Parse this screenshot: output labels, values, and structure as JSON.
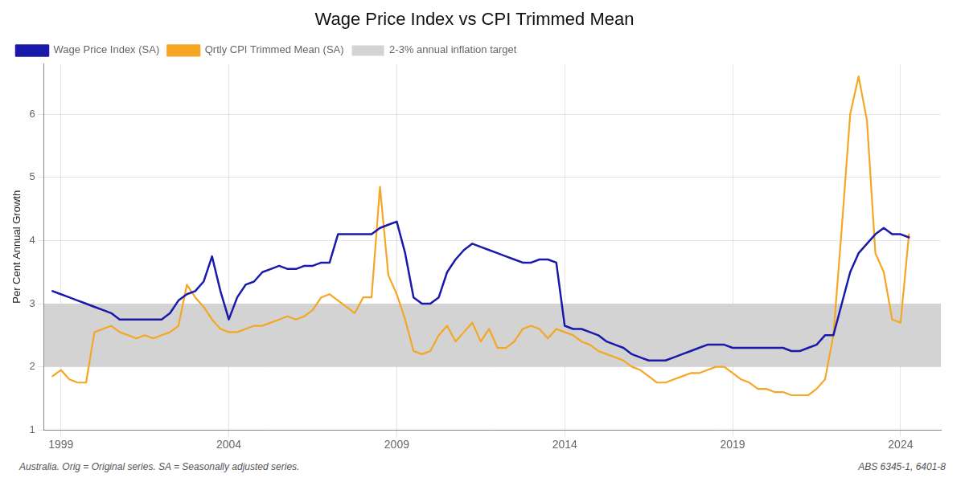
{
  "chart_data": {
    "type": "line",
    "title": "Wage Price Index vs CPI Trimmed Mean",
    "ylabel": "Per Cent Annual Growth",
    "annotations": [
      "Australia. Orig = Original series. SA = Seasonally adjusted series.",
      "ABS 6345-1, 6401-8"
    ],
    "x": [
      1998.75,
      1999.0,
      1999.25,
      1999.5,
      1999.75,
      2000.0,
      2000.25,
      2000.5,
      2000.75,
      2001.0,
      2001.25,
      2001.5,
      2001.75,
      2002.0,
      2002.25,
      2002.5,
      2002.75,
      2003.0,
      2003.25,
      2003.5,
      2003.75,
      2004.0,
      2004.25,
      2004.5,
      2004.75,
      2005.0,
      2005.25,
      2005.5,
      2005.75,
      2006.0,
      2006.25,
      2006.5,
      2006.75,
      2007.0,
      2007.25,
      2007.5,
      2007.75,
      2008.0,
      2008.25,
      2008.5,
      2008.75,
      2009.0,
      2009.25,
      2009.5,
      2009.75,
      2010.0,
      2010.25,
      2010.5,
      2010.75,
      2011.0,
      2011.25,
      2011.5,
      2011.75,
      2012.0,
      2012.25,
      2012.5,
      2012.75,
      2013.0,
      2013.25,
      2013.5,
      2013.75,
      2014.0,
      2014.25,
      2014.5,
      2014.75,
      2015.0,
      2015.25,
      2015.5,
      2015.75,
      2016.0,
      2016.25,
      2016.5,
      2016.75,
      2017.0,
      2017.25,
      2017.5,
      2017.75,
      2018.0,
      2018.25,
      2018.5,
      2018.75,
      2019.0,
      2019.25,
      2019.5,
      2019.75,
      2020.0,
      2020.25,
      2020.5,
      2020.75,
      2021.0,
      2021.25,
      2021.5,
      2021.75,
      2022.0,
      2022.25,
      2022.5,
      2022.75,
      2023.0,
      2023.25,
      2023.5,
      2023.75,
      2024.0,
      2024.25
    ],
    "series": [
      {
        "name": "Wage Price Index (SA)",
        "color": "#1a1aaa",
        "values": [
          3.2,
          3.15,
          3.1,
          3.05,
          3.0,
          2.95,
          2.9,
          2.85,
          2.75,
          2.75,
          2.75,
          2.75,
          2.75,
          2.75,
          2.85,
          3.05,
          3.15,
          3.2,
          3.35,
          3.75,
          3.2,
          2.75,
          3.1,
          3.3,
          3.35,
          3.5,
          3.55,
          3.6,
          3.55,
          3.55,
          3.6,
          3.6,
          3.65,
          3.65,
          4.1,
          4.1,
          4.1,
          4.1,
          4.1,
          4.2,
          4.25,
          4.3,
          3.8,
          3.1,
          3.0,
          3.0,
          3.1,
          3.5,
          3.7,
          3.85,
          3.95,
          3.9,
          3.85,
          3.8,
          3.75,
          3.7,
          3.65,
          3.65,
          3.7,
          3.7,
          3.65,
          2.65,
          2.6,
          2.6,
          2.55,
          2.5,
          2.4,
          2.35,
          2.3,
          2.2,
          2.15,
          2.1,
          2.1,
          2.1,
          2.15,
          2.2,
          2.25,
          2.3,
          2.35,
          2.35,
          2.35,
          2.3,
          2.3,
          2.3,
          2.3,
          2.3,
          2.3,
          2.3,
          2.25,
          2.25,
          2.3,
          2.35,
          2.5,
          2.5,
          3.0,
          3.5,
          3.8,
          3.95,
          4.1,
          4.2,
          4.1,
          4.1,
          4.05
        ]
      },
      {
        "name": "Qrtly CPI Trimmed Mean (SA)",
        "color": "#f5a623",
        "values": [
          1.85,
          1.95,
          1.8,
          1.75,
          1.75,
          2.55,
          2.6,
          2.65,
          2.55,
          2.5,
          2.45,
          2.5,
          2.45,
          2.5,
          2.55,
          2.65,
          3.3,
          3.1,
          2.95,
          2.75,
          2.6,
          2.55,
          2.55,
          2.6,
          2.65,
          2.65,
          2.7,
          2.75,
          2.8,
          2.75,
          2.8,
          2.9,
          3.1,
          3.15,
          3.05,
          2.95,
          2.85,
          3.1,
          3.1,
          4.85,
          3.45,
          3.15,
          2.75,
          2.25,
          2.2,
          2.25,
          2.5,
          2.65,
          2.4,
          2.55,
          2.7,
          2.4,
          2.6,
          2.3,
          2.3,
          2.4,
          2.6,
          2.65,
          2.6,
          2.45,
          2.6,
          2.55,
          2.5,
          2.4,
          2.35,
          2.25,
          2.2,
          2.15,
          2.1,
          2.0,
          1.95,
          1.85,
          1.75,
          1.75,
          1.8,
          1.85,
          1.9,
          1.9,
          1.95,
          2.0,
          2.0,
          1.9,
          1.8,
          1.75,
          1.65,
          1.65,
          1.6,
          1.6,
          1.55,
          1.55,
          1.55,
          1.65,
          1.8,
          2.5,
          4.2,
          6.0,
          6.6,
          5.9,
          3.8,
          3.5,
          2.75,
          2.7,
          4.1
        ]
      }
    ],
    "target_band": {
      "name": "2-3% annual inflation target",
      "color": "#d3d3d3",
      "values": [
        2.0,
        3.0
      ]
    },
    "xlim": [
      1998.5,
      2025.2
    ],
    "xticks": [
      1999,
      2004,
      2009,
      2014,
      2019,
      2024
    ],
    "ylim": [
      1.0,
      6.8
    ],
    "yticks": [
      1,
      2,
      3,
      4,
      5,
      6
    ],
    "grid": true,
    "legend": "upper left"
  }
}
